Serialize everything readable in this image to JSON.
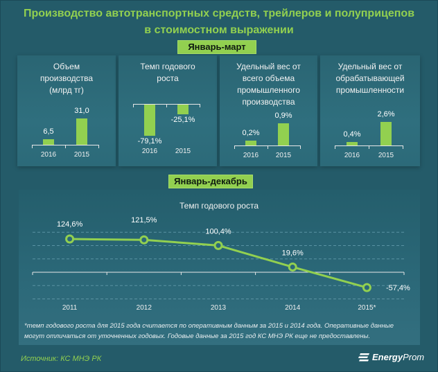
{
  "title_line1": "Производство  автотранспортных  средств, трейлеров и полуприцепов",
  "title_line2": "в стоимостном  выражении",
  "badge_q1": "Январь-март",
  "badge_year": "Январь-декабрь",
  "footnote_line1": "*темп годового роста для 2015 года считается по оперативным данным за 2015 и 2014 года. Оперативные данные",
  "footnote_line2": "могут отличаться от уточненных годовых. Годовые данные за 2015 год КС МНЭ РК еще не предоставлены.",
  "source": "Источник: КС МНЭ РК",
  "logo_bold": "Energy",
  "logo_light": "Prom",
  "colors": {
    "accent": "#92d050",
    "background": "#245b69"
  },
  "chart_data": [
    {
      "type": "bar",
      "title": "Объем производства (млрд тг)",
      "title_lines": [
        "Объем",
        "производства",
        "(млрд тг)"
      ],
      "categories": [
        "2016",
        "2015"
      ],
      "values": [
        6.5,
        31.0
      ],
      "labels": [
        "6,5",
        "31,0"
      ]
    },
    {
      "type": "bar",
      "title": "Темп годового роста",
      "title_lines": [
        "Темп годового",
        "роста"
      ],
      "categories": [
        "2016",
        "2015"
      ],
      "values": [
        -79.1,
        -25.1
      ],
      "labels": [
        "-79,1%",
        "-25,1%"
      ]
    },
    {
      "type": "bar",
      "title": "Удельный вес от всего объема промышленного производства",
      "title_lines": [
        "Удельный вес от",
        "всего объема",
        "промышленного",
        "производства"
      ],
      "categories": [
        "2016",
        "2015"
      ],
      "values": [
        0.2,
        0.9
      ],
      "labels": [
        "0,2%",
        "0,9%"
      ]
    },
    {
      "type": "bar",
      "title": "Удельный вес от обрабатывающей промышленности",
      "title_lines": [
        "Удельный вес от",
        "обрабатывающей",
        "промышленности"
      ],
      "categories": [
        "2016",
        "2015"
      ],
      "values": [
        0.4,
        2.6
      ],
      "labels": [
        "0,4%",
        "2,6%"
      ]
    },
    {
      "type": "line",
      "title": "Темп годового роста",
      "categories": [
        "2011",
        "2012",
        "2013",
        "2014",
        "2015*"
      ],
      "values": [
        124.6,
        121.5,
        100.4,
        19.6,
        -57.4
      ],
      "labels": [
        "124,6%",
        "121,5%",
        "100,4%",
        "19,6%",
        "-57,4%"
      ],
      "ylim": [
        -100,
        150
      ],
      "gridlines": [
        150,
        100,
        50,
        -50,
        -100
      ],
      "grid": true
    }
  ]
}
